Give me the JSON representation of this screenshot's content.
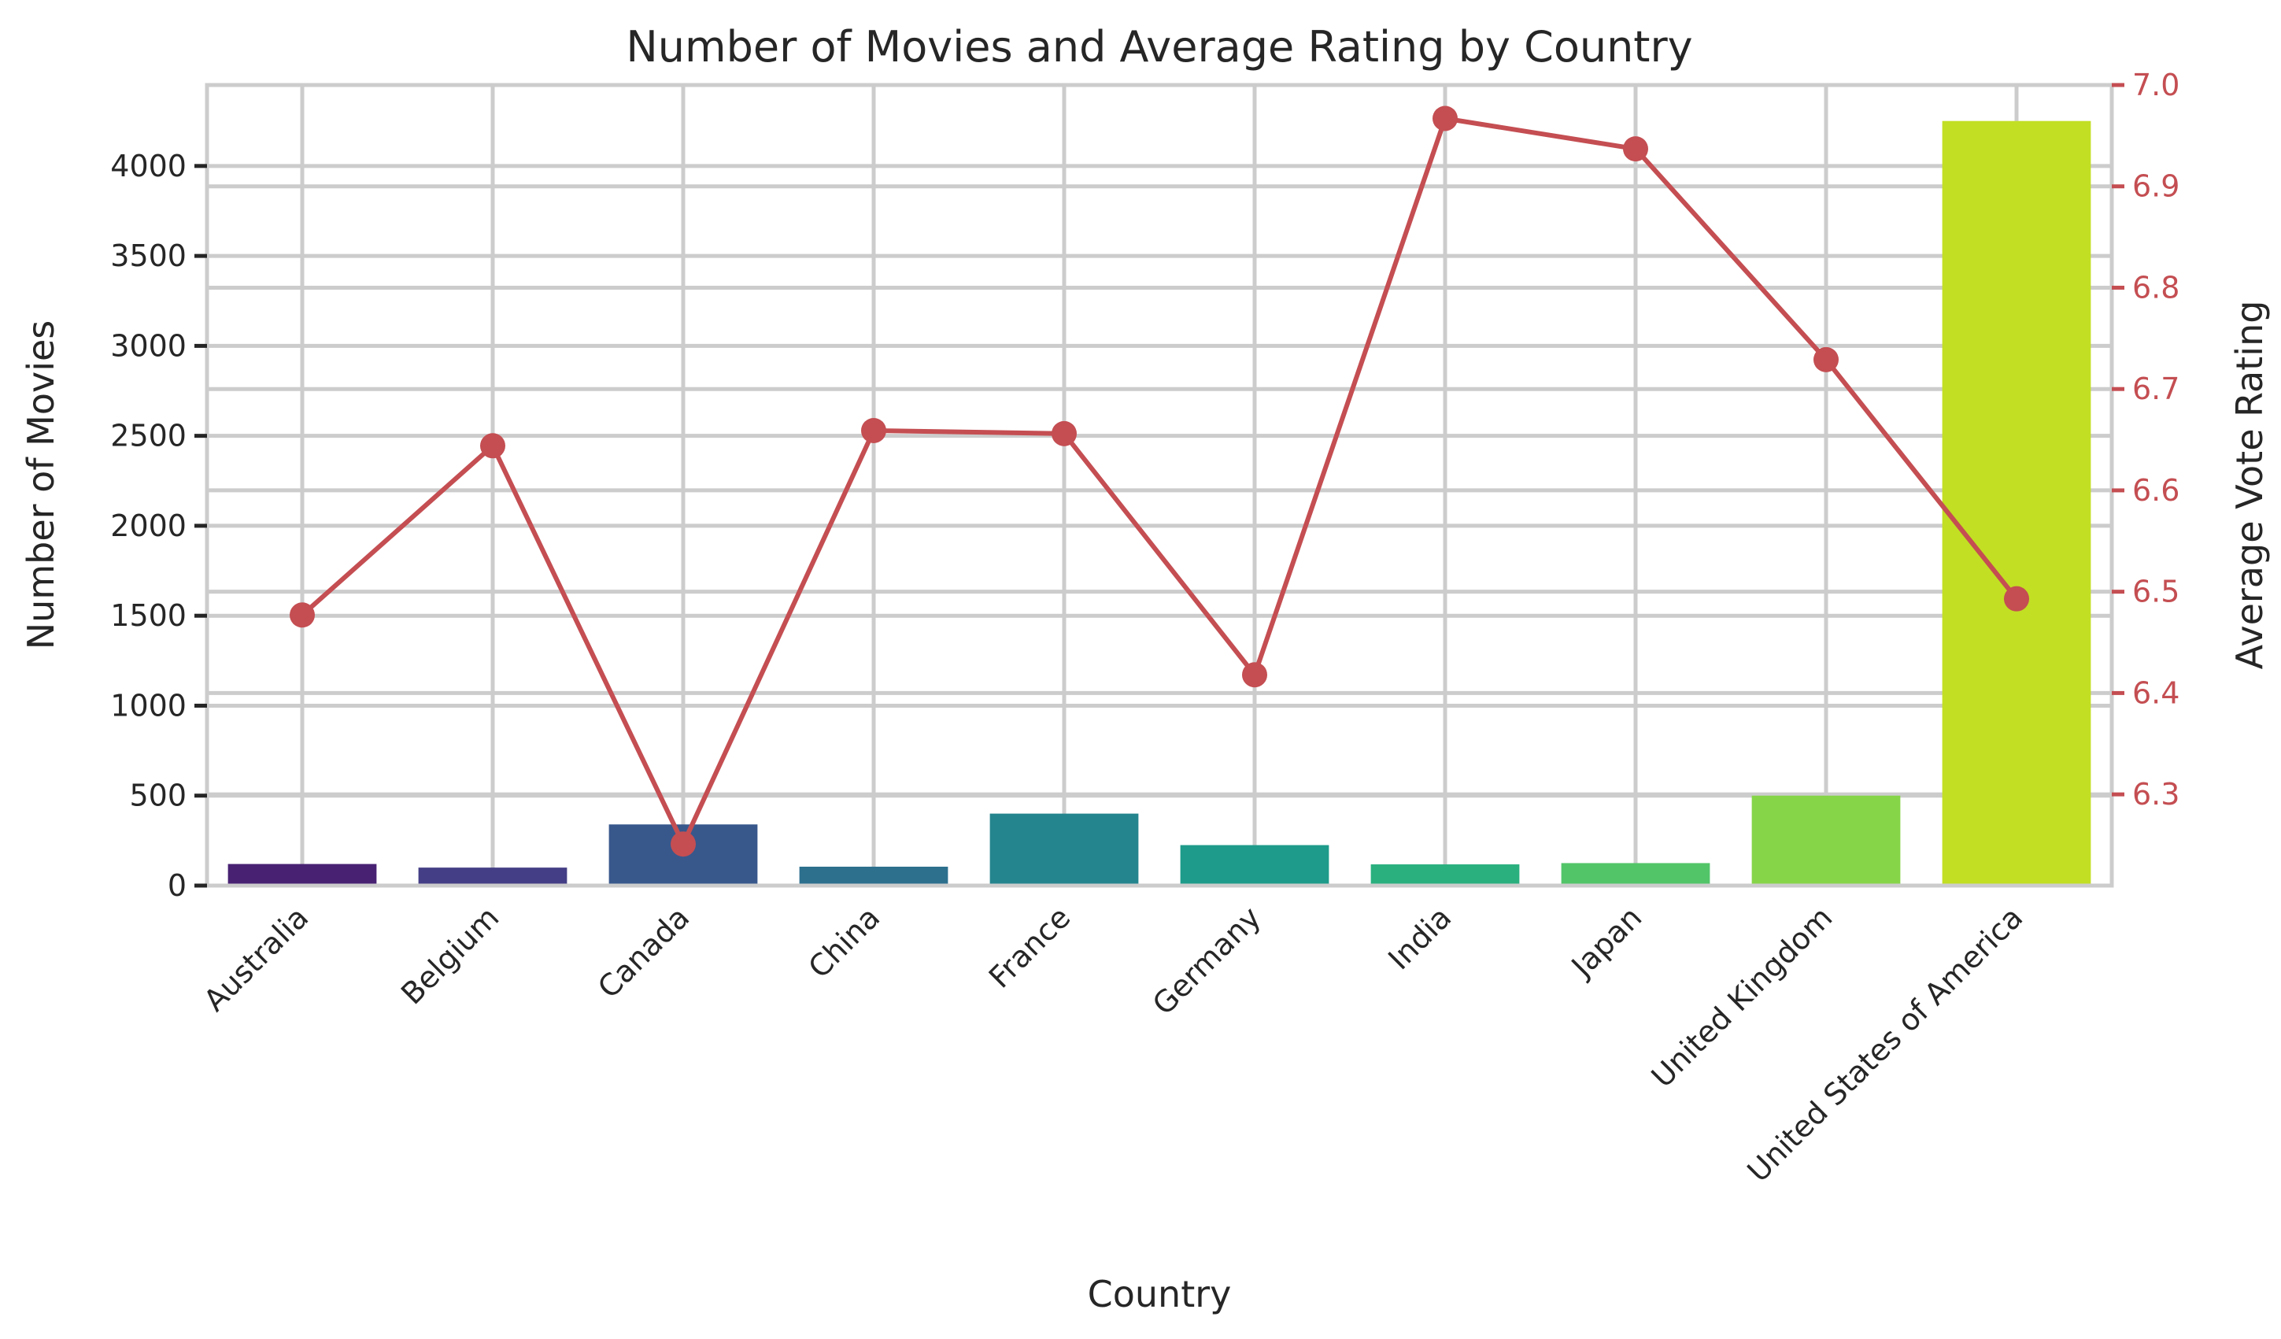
{
  "chart_data": {
    "type": "bar",
    "title": "Number of Movies and Average Rating by Country",
    "xlabel": "Country",
    "ylabel": "Number of Movies",
    "y2label": "Average Vote Rating",
    "categories": [
      "Australia",
      "Belgium",
      "Canada",
      "China",
      "France",
      "Germany",
      "India",
      "Japan",
      "United Kingdom",
      "United States of America"
    ],
    "series": [
      {
        "type": "bar",
        "values": [
          120,
          100,
          340,
          105,
          400,
          225,
          118,
          125,
          500,
          4250
        ],
        "colors": [
          "#482173",
          "#433e85",
          "#38588c",
          "#2d708e",
          "#25858e",
          "#1e9b8a",
          "#2ab07f",
          "#52c569",
          "#86d549",
          "#c2df23"
        ]
      },
      {
        "type": "line",
        "axis": "right",
        "values": [
          6.477,
          6.644,
          6.251,
          6.659,
          6.656,
          6.418,
          6.967,
          6.937,
          6.729,
          6.493
        ],
        "color": "#c44e52"
      }
    ],
    "ylim": [
      0,
      4450
    ],
    "yticks": [
      0,
      500,
      1000,
      1500,
      2000,
      2500,
      3000,
      3500,
      4000
    ],
    "y2lim": [
      6.21,
      7.0
    ],
    "y2ticks": [
      6.3,
      6.4,
      6.5,
      6.6,
      6.7,
      6.8,
      6.9,
      7.0
    ],
    "grid": true,
    "right_axis_color": "#c44e52"
  }
}
